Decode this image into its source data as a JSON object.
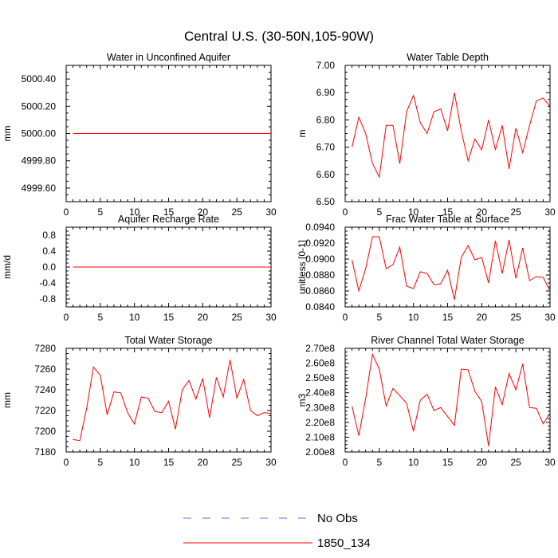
{
  "title": "Central U.S. (30-50N,105-90W)",
  "line_color": "#ff0000",
  "obs_color": "#6b6bd6",
  "legend": [
    {
      "label": "No Obs",
      "style": "dashed",
      "color": "#6b6bd6"
    },
    {
      "label": "1850_134",
      "style": "solid",
      "color": "#ff0000"
    }
  ],
  "chart_data": [
    {
      "type": "line",
      "title": "Water in Unconfined Aquifer",
      "ylabel": "mm",
      "xlim": [
        0,
        30
      ],
      "ylim": [
        4999.5,
        5000.5
      ],
      "xticks": [
        "0",
        "5",
        "10",
        "15",
        "20",
        "25",
        "30"
      ],
      "yticks": [
        {
          "value": 4999.6,
          "label": "4999.60"
        },
        {
          "value": 4999.8,
          "label": "4999.80"
        },
        {
          "value": 5000.0,
          "label": "5000.00"
        },
        {
          "value": 5000.2,
          "label": "5000.20"
        },
        {
          "value": 5000.4,
          "label": "5000.40"
        }
      ],
      "series": [
        {
          "name": "1850_134",
          "x": [
            1,
            30
          ],
          "y": [
            5000.0,
            5000.0
          ]
        }
      ]
    },
    {
      "type": "line",
      "title": "Water Table Depth",
      "ylabel": "m",
      "xlim": [
        0,
        30
      ],
      "ylim": [
        6.5,
        7.0
      ],
      "xticks": [
        "0",
        "5",
        "10",
        "15",
        "20",
        "25",
        "30"
      ],
      "yticks": [
        {
          "value": 6.5,
          "label": "6.50"
        },
        {
          "value": 6.6,
          "label": "6.60"
        },
        {
          "value": 6.7,
          "label": "6.70"
        },
        {
          "value": 6.8,
          "label": "6.80"
        },
        {
          "value": 6.9,
          "label": "6.90"
        },
        {
          "value": 7.0,
          "label": "7.00"
        }
      ],
      "series": [
        {
          "name": "1850_134",
          "x": [
            1,
            2,
            3,
            4,
            5,
            6,
            7,
            8,
            9,
            10,
            11,
            12,
            13,
            14,
            15,
            16,
            17,
            18,
            19,
            20,
            21,
            22,
            23,
            24,
            25,
            26,
            27,
            28,
            29,
            30
          ],
          "y": [
            6.7,
            6.81,
            6.75,
            6.64,
            6.59,
            6.78,
            6.78,
            6.64,
            6.83,
            6.89,
            6.79,
            6.75,
            6.83,
            6.84,
            6.76,
            6.9,
            6.76,
            6.65,
            6.73,
            6.69,
            6.8,
            6.69,
            6.78,
            6.62,
            6.77,
            6.68,
            6.78,
            6.87,
            6.88,
            6.85
          ]
        }
      ]
    },
    {
      "type": "line",
      "title": "Aquifer Recharge Rate",
      "ylabel": "mm/d",
      "xlim": [
        0,
        30
      ],
      "ylim": [
        -1.0,
        1.0
      ],
      "xticks": [
        "0",
        "5",
        "10",
        "15",
        "20",
        "25",
        "30"
      ],
      "yticks": [
        {
          "value": -0.8,
          "label": "-0.8"
        },
        {
          "value": -0.4,
          "label": "-0.4"
        },
        {
          "value": 0.0,
          "label": "0.0"
        },
        {
          "value": 0.4,
          "label": "0.4"
        },
        {
          "value": 0.8,
          "label": "0.8"
        }
      ],
      "series": [
        {
          "name": "1850_134",
          "x": [
            1,
            30
          ],
          "y": [
            0.0,
            0.0
          ]
        }
      ]
    },
    {
      "type": "line",
      "title": "Frac Water Table at Surface",
      "ylabel": "unitless [0-1]",
      "xlim": [
        0,
        30
      ],
      "ylim": [
        0.084,
        0.094
      ],
      "xticks": [
        "0",
        "5",
        "10",
        "15",
        "20",
        "25",
        "30"
      ],
      "yticks": [
        {
          "value": 0.084,
          "label": "0.0840"
        },
        {
          "value": 0.086,
          "label": "0.0860"
        },
        {
          "value": 0.088,
          "label": "0.0880"
        },
        {
          "value": 0.09,
          "label": "0.0900"
        },
        {
          "value": 0.092,
          "label": "0.0920"
        },
        {
          "value": 0.094,
          "label": "0.0940"
        }
      ],
      "series": [
        {
          "name": "1850_134",
          "x": [
            1,
            2,
            3,
            4,
            5,
            6,
            7,
            8,
            9,
            10,
            11,
            12,
            13,
            14,
            15,
            16,
            17,
            18,
            19,
            20,
            21,
            22,
            23,
            24,
            25,
            26,
            27,
            28,
            29,
            30
          ],
          "y": [
            0.0899,
            0.086,
            0.0888,
            0.0928,
            0.0928,
            0.0888,
            0.0893,
            0.0915,
            0.0866,
            0.0863,
            0.0884,
            0.0882,
            0.0868,
            0.0869,
            0.0886,
            0.0849,
            0.0902,
            0.0917,
            0.0899,
            0.0902,
            0.087,
            0.0923,
            0.0882,
            0.0924,
            0.0876,
            0.0914,
            0.0873,
            0.0878,
            0.0877,
            0.086
          ]
        }
      ]
    },
    {
      "type": "line",
      "title": "Total Water Storage",
      "ylabel": "mm",
      "xlim": [
        0,
        30
      ],
      "ylim": [
        7180,
        7280
      ],
      "xticks": [
        "0",
        "5",
        "10",
        "15",
        "20",
        "25",
        "30"
      ],
      "yticks": [
        {
          "value": 7180,
          "label": "7180"
        },
        {
          "value": 7200,
          "label": "7200"
        },
        {
          "value": 7220,
          "label": "7220"
        },
        {
          "value": 7240,
          "label": "7240"
        },
        {
          "value": 7260,
          "label": "7260"
        },
        {
          "value": 7280,
          "label": "7280"
        }
      ],
      "series": [
        {
          "name": "1850_134",
          "x": [
            1,
            2,
            3,
            4,
            5,
            6,
            7,
            8,
            9,
            10,
            11,
            12,
            13,
            14,
            15,
            16,
            17,
            18,
            19,
            20,
            21,
            22,
            23,
            24,
            25,
            26,
            27,
            28,
            29,
            30
          ],
          "y": [
            7192,
            7191,
            7222,
            7262,
            7254,
            7216,
            7238,
            7237,
            7218,
            7207,
            7233,
            7232,
            7219,
            7218,
            7229,
            7202,
            7240,
            7249,
            7231,
            7251,
            7213,
            7252,
            7233,
            7269,
            7232,
            7250,
            7220,
            7215,
            7218,
            7217
          ]
        }
      ]
    },
    {
      "type": "line",
      "title": "River Channel Total Water Storage",
      "ylabel": "m3",
      "xlim": [
        0,
        30
      ],
      "ylim": [
        200000000.0,
        270000000.0
      ],
      "xticks": [
        "0",
        "5",
        "10",
        "15",
        "20",
        "25",
        "30"
      ],
      "yticks": [
        {
          "value": 200000000.0,
          "label": "2.00e8"
        },
        {
          "value": 210000000.0,
          "label": "2.10e8"
        },
        {
          "value": 220000000.0,
          "label": "2.20e8"
        },
        {
          "value": 230000000.0,
          "label": "2.30e8"
        },
        {
          "value": 240000000.0,
          "label": "2.40e8"
        },
        {
          "value": 250000000.0,
          "label": "2.50e8"
        },
        {
          "value": 260000000.0,
          "label": "2.60e8"
        },
        {
          "value": 270000000.0,
          "label": "2.70e8"
        }
      ],
      "series": [
        {
          "name": "1850_134",
          "x": [
            1,
            2,
            3,
            4,
            5,
            6,
            7,
            8,
            9,
            10,
            11,
            12,
            13,
            14,
            15,
            16,
            17,
            18,
            19,
            20,
            21,
            22,
            23,
            24,
            25,
            26,
            27,
            28,
            29,
            30
          ],
          "y": [
            231000000.0,
            211000000.0,
            236000000.0,
            266000000.0,
            256000000.0,
            231000000.0,
            243000000.0,
            238000000.0,
            233000000.0,
            214000000.0,
            235000000.0,
            239000000.0,
            228000000.0,
            230000000.0,
            224000000.0,
            218000000.0,
            256000000.0,
            255500000.0,
            241000000.0,
            234000000.0,
            204000000.0,
            244000000.0,
            232000000.0,
            253000000.0,
            242000000.0,
            259500000.0,
            230000000.0,
            229500000.0,
            219000000.0,
            226000000.0
          ]
        }
      ]
    }
  ]
}
